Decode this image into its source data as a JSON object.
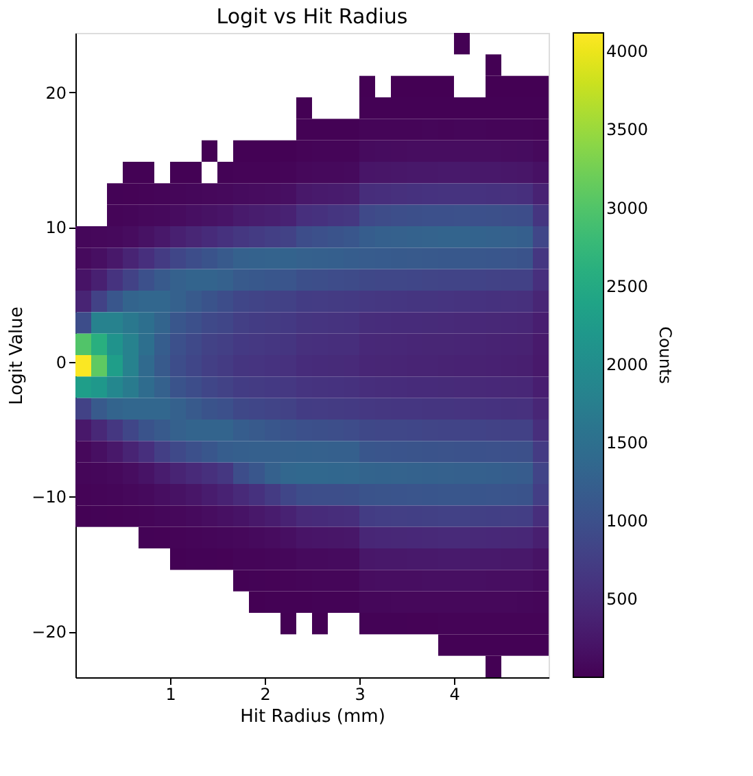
{
  "chart_data": {
    "type": "heatmap",
    "title": "Logit vs Hit Radius",
    "xlabel": "Hit Radius (mm)",
    "ylabel": "Logit Value",
    "clabel": "Counts",
    "xlim": [
      0,
      5
    ],
    "ylim": [
      -23.4,
      24.4
    ],
    "xticks": [
      1,
      2,
      3,
      4
    ],
    "yticks": [
      {
        "value": -20,
        "label": "−20"
      },
      {
        "value": -10,
        "label": "−10"
      },
      0,
      10,
      20
    ],
    "clim": [
      1,
      4120
    ],
    "cticks": [
      500,
      1000,
      1500,
      2000,
      2500,
      3000,
      3500,
      4000
    ],
    "grid": false,
    "cells": [
      [
        null,
        null,
        null,
        null,
        null,
        null,
        null,
        null,
        null,
        null,
        null,
        null,
        null,
        null,
        null,
        null,
        null,
        null,
        null,
        null,
        null,
        null,
        null,
        null,
        1,
        null,
        null,
        null,
        null,
        null
      ],
      [
        null,
        null,
        null,
        null,
        null,
        null,
        null,
        null,
        null,
        null,
        null,
        null,
        null,
        null,
        null,
        null,
        null,
        null,
        null,
        null,
        null,
        null,
        null,
        null,
        null,
        null,
        2,
        null,
        null,
        null
      ],
      [
        null,
        null,
        null,
        null,
        null,
        null,
        null,
        null,
        null,
        null,
        null,
        null,
        null,
        null,
        null,
        null,
        null,
        null,
        3,
        null,
        4,
        3,
        4,
        3,
        null,
        null,
        2,
        4,
        3,
        3
      ],
      [
        null,
        null,
        null,
        null,
        null,
        null,
        null,
        null,
        null,
        null,
        null,
        null,
        null,
        null,
        4,
        null,
        null,
        null,
        12,
        10,
        14,
        15,
        13,
        16,
        12,
        14,
        15,
        13,
        12,
        10
      ],
      [
        null,
        null,
        null,
        null,
        null,
        null,
        null,
        null,
        null,
        null,
        null,
        null,
        null,
        null,
        15,
        12,
        14,
        16,
        40,
        38,
        45,
        48,
        50,
        47,
        52,
        50,
        46,
        48,
        44,
        35
      ],
      [
        null,
        null,
        null,
        null,
        null,
        null,
        null,
        null,
        5,
        null,
        9,
        10,
        12,
        14,
        35,
        38,
        40,
        42,
        110,
        115,
        120,
        125,
        130,
        128,
        132,
        130,
        125,
        120,
        115,
        90
      ],
      [
        null,
        null,
        null,
        8,
        10,
        null,
        14,
        15,
        null,
        20,
        30,
        32,
        35,
        40,
        80,
        85,
        90,
        95,
        220,
        230,
        240,
        250,
        255,
        260,
        260,
        255,
        250,
        240,
        230,
        170
      ],
      [
        null,
        null,
        20,
        25,
        30,
        40,
        55,
        65,
        75,
        85,
        110,
        120,
        130,
        150,
        250,
        270,
        290,
        310,
        520,
        540,
        560,
        580,
        590,
        600,
        600,
        590,
        580,
        570,
        550,
        380
      ],
      [
        null,
        null,
        40,
        50,
        70,
        90,
        120,
        150,
        180,
        210,
        280,
        310,
        340,
        380,
        550,
        580,
        620,
        650,
        900,
        930,
        960,
        980,
        1000,
        1000,
        1010,
        1000,
        990,
        970,
        950,
        620
      ],
      [
        60,
        70,
        90,
        120,
        180,
        250,
        350,
        420,
        500,
        580,
        650,
        700,
        750,
        800,
        950,
        1000,
        1050,
        1100,
        1200,
        1230,
        1250,
        1270,
        1280,
        1300,
        1300,
        1290,
        1270,
        1250,
        1220,
        850
      ],
      [
        100,
        150,
        250,
        400,
        550,
        700,
        850,
        950,
        1050,
        1150,
        1250,
        1270,
        1280,
        1290,
        1250,
        1230,
        1220,
        1200,
        1180,
        1170,
        1160,
        1150,
        1140,
        1130,
        1120,
        1110,
        1100,
        1080,
        1050,
        650
      ],
      [
        200,
        350,
        600,
        800,
        1000,
        1150,
        1250,
        1300,
        1300,
        1250,
        1150,
        1120,
        1100,
        1080,
        980,
        960,
        940,
        920,
        880,
        870,
        860,
        850,
        840,
        830,
        820,
        810,
        800,
        790,
        780,
        550
      ],
      [
        400,
        800,
        1100,
        1300,
        1350,
        1350,
        1250,
        1150,
        1050,
        950,
        850,
        820,
        800,
        780,
        720,
        710,
        700,
        690,
        660,
        650,
        640,
        630,
        620,
        610,
        600,
        590,
        580,
        570,
        560,
        420
      ],
      [
        950,
        1800,
        1800,
        1650,
        1500,
        1300,
        1100,
        1000,
        900,
        850,
        750,
        720,
        700,
        680,
        620,
        610,
        600,
        590,
        520,
        510,
        500,
        500,
        490,
        480,
        470,
        460,
        450,
        440,
        430,
        330
      ],
      [
        3000,
        2600,
        2100,
        1800,
        1500,
        1200,
        1000,
        900,
        800,
        750,
        680,
        660,
        640,
        620,
        560,
        550,
        540,
        530,
        460,
        450,
        440,
        430,
        420,
        420,
        410,
        400,
        390,
        380,
        370,
        280
      ],
      [
        4100,
        3100,
        2300,
        1800,
        1400,
        1150,
        950,
        850,
        750,
        700,
        630,
        610,
        590,
        570,
        510,
        500,
        490,
        480,
        430,
        420,
        410,
        400,
        400,
        390,
        380,
        370,
        360,
        350,
        340,
        260
      ],
      [
        2300,
        2200,
        1900,
        1700,
        1450,
        1250,
        1050,
        950,
        850,
        800,
        720,
        700,
        680,
        660,
        610,
        600,
        590,
        580,
        530,
        520,
        510,
        500,
        500,
        490,
        480,
        470,
        460,
        450,
        440,
        330
      ],
      [
        800,
        1150,
        1300,
        1350,
        1350,
        1350,
        1250,
        1150,
        1050,
        1000,
        880,
        850,
        820,
        800,
        720,
        710,
        700,
        690,
        660,
        650,
        640,
        640,
        630,
        620,
        610,
        600,
        590,
        580,
        570,
        430
      ],
      [
        250,
        450,
        650,
        850,
        1050,
        1150,
        1250,
        1300,
        1300,
        1300,
        1200,
        1150,
        1100,
        1050,
        1000,
        980,
        960,
        940,
        880,
        870,
        860,
        850,
        840,
        830,
        820,
        810,
        800,
        790,
        780,
        540
      ],
      [
        80,
        150,
        250,
        400,
        550,
        750,
        900,
        1000,
        1100,
        1200,
        1220,
        1230,
        1240,
        1250,
        1260,
        1250,
        1240,
        1230,
        1100,
        1080,
        1070,
        1060,
        1050,
        1040,
        1030,
        1020,
        1010,
        1000,
        990,
        700
      ],
      [
        50,
        60,
        90,
        130,
        200,
        300,
        400,
        480,
        560,
        650,
        950,
        1100,
        1250,
        1350,
        1380,
        1370,
        1360,
        1350,
        1300,
        1290,
        1280,
        1270,
        1260,
        1250,
        1240,
        1230,
        1220,
        1200,
        1180,
        820
      ],
      [
        30,
        40,
        50,
        70,
        100,
        140,
        180,
        230,
        300,
        380,
        480,
        580,
        700,
        850,
        950,
        960,
        970,
        980,
        1050,
        1060,
        1070,
        1080,
        1090,
        1100,
        1100,
        1090,
        1080,
        1070,
        1050,
        740
      ],
      [
        15,
        20,
        25,
        35,
        45,
        60,
        80,
        100,
        130,
        160,
        200,
        250,
        300,
        380,
        480,
        500,
        520,
        540,
        720,
        740,
        750,
        760,
        770,
        780,
        780,
        770,
        760,
        750,
        740,
        540
      ],
      [
        null,
        null,
        null,
        null,
        20,
        25,
        35,
        40,
        50,
        60,
        80,
        100,
        120,
        150,
        210,
        220,
        230,
        240,
        430,
        440,
        450,
        460,
        470,
        480,
        480,
        470,
        460,
        450,
        440,
        340
      ],
      [
        null,
        null,
        null,
        null,
        null,
        null,
        15,
        18,
        22,
        25,
        40,
        45,
        50,
        60,
        95,
        100,
        105,
        110,
        240,
        250,
        255,
        260,
        265,
        270,
        270,
        265,
        260,
        255,
        250,
        190
      ],
      [
        null,
        null,
        null,
        null,
        null,
        null,
        null,
        null,
        null,
        null,
        15,
        20,
        25,
        30,
        48,
        50,
        52,
        55,
        130,
        135,
        140,
        140,
        145,
        150,
        150,
        145,
        140,
        138,
        135,
        110
      ],
      [
        null,
        null,
        null,
        null,
        null,
        null,
        null,
        null,
        null,
        null,
        null,
        5,
        8,
        10,
        15,
        18,
        20,
        22,
        65,
        68,
        70,
        72,
        74,
        75,
        75,
        74,
        72,
        70,
        68,
        55
      ],
      [
        null,
        null,
        null,
        null,
        null,
        null,
        null,
        null,
        null,
        null,
        null,
        null,
        null,
        3,
        null,
        5,
        null,
        null,
        18,
        20,
        22,
        24,
        25,
        32,
        34,
        35,
        36,
        35,
        33,
        28
      ],
      [
        null,
        null,
        null,
        null,
        null,
        null,
        null,
        null,
        null,
        null,
        null,
        null,
        null,
        null,
        null,
        null,
        null,
        null,
        null,
        null,
        null,
        null,
        null,
        7,
        8,
        9,
        10,
        11,
        10,
        9
      ],
      [
        null,
        null,
        null,
        null,
        null,
        null,
        null,
        null,
        null,
        null,
        null,
        null,
        null,
        null,
        null,
        null,
        null,
        null,
        null,
        null,
        null,
        null,
        null,
        null,
        null,
        null,
        2,
        null,
        null,
        null
      ]
    ]
  }
}
